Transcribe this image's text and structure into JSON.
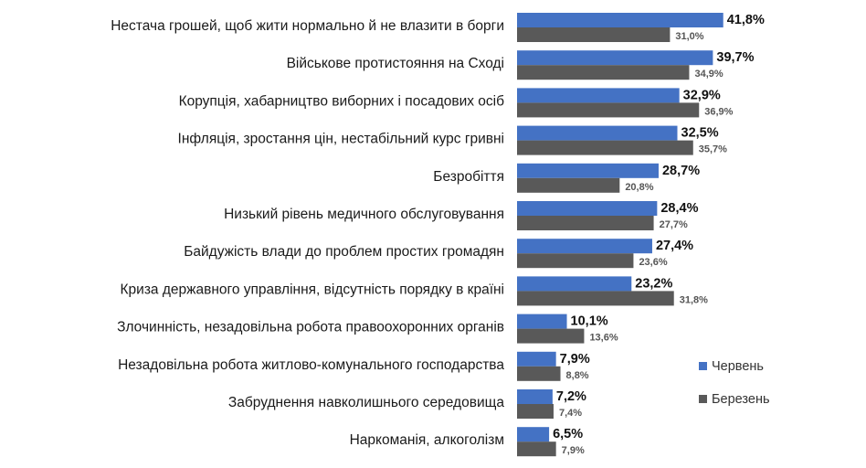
{
  "chart_data": {
    "type": "bar",
    "orientation": "horizontal",
    "categories": [
      "Нестача грошей, щоб жити нормально й не влазити в борги",
      "Військове протистояння на Сході",
      "Корупція, хабарництво виборних і посадових осіб",
      "Інфляція, зростання цін, нестабільний курс гривні",
      "Безробіття",
      "Низький рівень медичного обслуговування",
      "Байдужість влади до проблем простих громадян",
      "Криза державного управління, відсутність порядку в країні",
      "Злочинність, незадовільна робота правоохоронних органів",
      "Незадовільна робота житлово-комунального господарства",
      "Забруднення навколишнього середовища",
      "Наркоманія, алкоголізм"
    ],
    "series": [
      {
        "name": "Червень",
        "color": "#4472c4",
        "values": [
          41.8,
          39.7,
          32.9,
          32.5,
          28.7,
          28.4,
          27.4,
          23.2,
          10.1,
          7.9,
          7.2,
          6.5
        ],
        "labels": [
          "41,8%",
          "39,7%",
          "32,9%",
          "32,5%",
          "28,7%",
          "28,4%",
          "27,4%",
          "23,2%",
          "10,1%",
          "7,9%",
          "7,2%",
          "6,5%"
        ]
      },
      {
        "name": "Березень",
        "color": "#595959",
        "values": [
          31.0,
          34.9,
          36.9,
          35.7,
          20.8,
          27.7,
          23.6,
          31.8,
          13.6,
          8.8,
          7.4,
          7.9
        ],
        "labels": [
          "31,0%",
          "34,9%",
          "36,9%",
          "35,7%",
          "20,8%",
          "27,7%",
          "23,6%",
          "31,8%",
          "13,6%",
          "8,8%",
          "7,4%",
          "7,9%"
        ]
      }
    ],
    "xlim": [
      0,
      50
    ],
    "legend_position": "right",
    "grid": false
  }
}
